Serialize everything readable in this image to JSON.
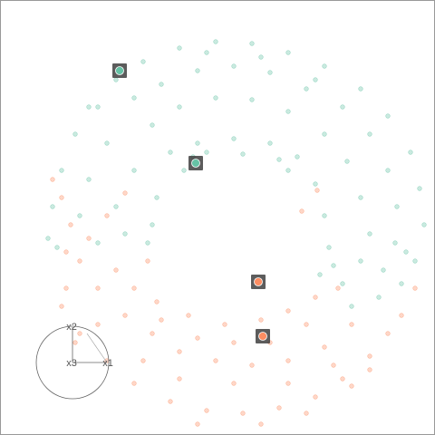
{
  "chart_data": {
    "type": "scatter",
    "xlim": [
      -258,
      222
    ],
    "ylim": [
      -222,
      258
    ],
    "axis_labels": [
      "x2",
      "x3",
      "x1"
    ],
    "series": [
      {
        "color": "#66c2a5",
        "x": [
          -130,
          -100,
          -60,
          -20,
          20,
          60,
          100,
          140,
          170,
          195,
          205,
          210,
          200,
          185,
          -150,
          -175,
          -190,
          -200,
          -205,
          -195,
          -110,
          -80,
          -40,
          0,
          40,
          80,
          120,
          150,
          170,
          180,
          178,
          165,
          -140,
          -160,
          -170,
          -150,
          -90,
          -60,
          -20,
          20,
          60,
          100,
          125,
          140,
          150,
          140,
          120,
          -110,
          -130,
          -120,
          -95,
          -70,
          -40,
          0,
          40,
          70,
          90,
          100,
          105,
          95,
          -85,
          -90,
          -30,
          30,
          90,
          -160,
          190,
          160,
          130,
          110,
          -45,
          -55,
          -30,
          10,
          50,
          60
        ],
        "y": [
          170,
          190,
          205,
          212,
          210,
          200,
          185,
          160,
          130,
          90,
          50,
          10,
          -30,
          -55,
          140,
          110,
          70,
          30,
          -5,
          -15,
          150,
          165,
          180,
          185,
          178,
          160,
          140,
          110,
          70,
          30,
          -10,
          -40,
          100,
          60,
          20,
          -10,
          120,
          140,
          150,
          148,
          135,
          110,
          80,
          40,
          0,
          -30,
          -55,
          70,
          30,
          0,
          -10,
          90,
          100,
          105,
          100,
          85,
          55,
          20,
          -15,
          -45,
          40,
          10,
          200,
          195,
          170,
          140,
          -20,
          -70,
          -80,
          -35,
          85,
          70,
          90,
          88,
          82,
          70
        ]
      },
      {
        "color": "#fc8d62",
        "x": [
          -200,
          -190,
          -180,
          -170,
          -150,
          -120,
          -90,
          -60,
          -20,
          20,
          60,
          100,
          130,
          -190,
          -170,
          -140,
          -110,
          -70,
          -30,
          10,
          50,
          90,
          120,
          150,
          170,
          185,
          150,
          -130,
          -110,
          -85,
          -50,
          -10,
          30,
          60,
          90,
          115,
          80,
          40,
          0,
          -40,
          -80,
          -160,
          -140,
          -120,
          -60,
          0,
          60,
          110,
          -100,
          -150,
          -185,
          -175,
          -40,
          30,
          80,
          130,
          200,
          92,
          75,
          -185,
          -95
        ],
        "y": [
          60,
          40,
          10,
          -30,
          -60,
          -90,
          -110,
          -130,
          -140,
          -145,
          -140,
          -125,
          -100,
          -80,
          -110,
          -140,
          -165,
          -185,
          -195,
          -198,
          -192,
          -180,
          -160,
          -135,
          -110,
          -90,
          -150,
          -40,
          -60,
          -75,
          -90,
          -100,
          -95,
          -85,
          -70,
          -60,
          -100,
          -120,
          -120,
          -115,
          -95,
          -5,
          20,
          45,
          -160,
          -165,
          -165,
          -145,
          -140,
          -100,
          -60,
          -120,
          -210,
          -210,
          -198,
          -168,
          -60,
          48,
          25,
          -20,
          -30
        ]
      },
      {
        "color": "#66c2a5",
        "highlight": true,
        "x": [
          -126,
          -42
        ],
        "y": [
          180,
          78
        ]
      },
      {
        "color": "#fc8d62",
        "highlight": true,
        "x": [
          27,
          32
        ],
        "y": [
          -53,
          -113
        ]
      }
    ]
  }
}
